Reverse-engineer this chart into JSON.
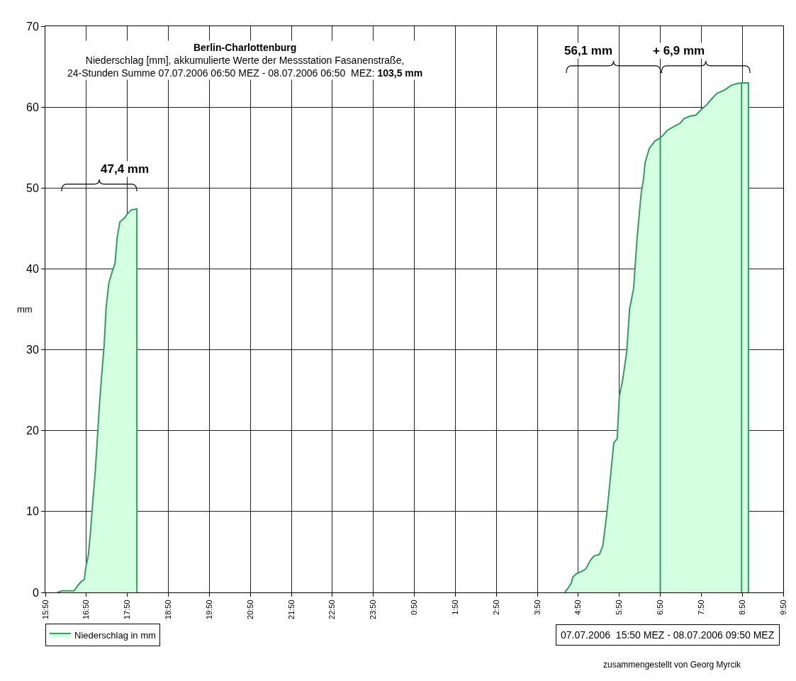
{
  "chart_data": {
    "type": "area",
    "title": "Berlin-Charlottenburg",
    "subtitle": "Niederschlag [mm], akkumulierte Werte der Messstation Fasanenstraße,\n24-Stunden Summe 07.07.2006 06:50 MEZ - 08.07.2006 06:50  MEZ: 103,5 mm",
    "ylabel": "mm",
    "annotations": [
      "47,4 mm",
      "56,1 mm",
      "+ 6,9 mm",
      "07.07.2006  15:50 MEZ - 08.07.2006 09:50 MEZ",
      "zusammengestellt von Georg Myrcik"
    ],
    "series": [
      {
        "name": "Niederschlag in mm",
        "color": "#2f9e5f",
        "x": [
          "2006-07-07T16:08",
          "2006-07-07T16:14",
          "2006-07-07T16:32",
          "2006-07-07T16:38",
          "2006-07-07T16:43",
          "2006-07-07T16:47",
          "2006-07-07T16:49",
          "2006-07-07T16:53",
          "2006-07-07T16:56",
          "2006-07-07T16:59",
          "2006-07-07T17:03",
          "2006-07-07T17:06",
          "2006-07-07T17:09",
          "2006-07-07T17:12",
          "2006-07-07T17:16",
          "2006-07-07T17:19",
          "2006-07-07T17:23",
          "2006-07-07T17:28",
          "2006-07-07T17:32",
          "2006-07-07T17:35",
          "2006-07-07T17:39",
          "2006-07-07T17:46",
          "2006-07-07T17:50",
          "2006-07-07T17:56",
          "2006-07-07T18:04",
          "2006-07-07T18:04",
          "2006-07-07T23:00",
          "2006-07-08T04:30",
          "2006-07-08T04:34",
          "2006-07-08T04:40",
          "2006-07-08T04:42",
          "2006-07-08T04:47",
          "2006-07-08T04:55",
          "2006-07-08T05:01",
          "2006-07-08T05:08",
          "2006-07-08T05:13",
          "2006-07-08T05:21",
          "2006-07-08T05:26",
          "2006-07-08T05:32",
          "2006-07-08T05:37",
          "2006-07-08T05:42",
          "2006-07-08T05:47",
          "2006-07-08T05:50",
          "2006-07-08T05:55",
          "2006-07-08T06:01",
          "2006-07-08T06:05",
          "2006-07-08T06:11",
          "2006-07-08T06:16",
          "2006-07-08T06:22",
          "2006-07-08T06:25",
          "2006-07-08T06:28",
          "2006-07-08T06:34",
          "2006-07-08T06:42",
          "2006-07-08T06:50",
          "2006-07-08T06:50",
          "2006-07-08T06:50",
          "2006-07-08T06:54",
          "2006-07-08T07:00",
          "2006-07-08T07:08",
          "2006-07-08T07:19",
          "2006-07-08T07:25",
          "2006-07-08T07:34",
          "2006-07-08T07:42",
          "2006-07-08T07:50",
          "2006-07-08T07:58",
          "2006-07-08T08:05",
          "2006-07-08T08:13",
          "2006-07-08T08:24",
          "2006-07-08T08:34",
          "2006-07-08T08:42",
          "2006-07-08T08:49",
          "2006-07-08T08:49",
          "2006-07-08T08:49",
          "2006-07-08T08:50",
          "2006-07-08T08:59",
          "2006-07-08T08:59"
        ],
        "values": [
          0,
          0.2,
          0.2,
          0.9,
          1.4,
          1.6,
          3,
          4.7,
          7.4,
          10.8,
          14.9,
          18.9,
          23,
          26.4,
          30.5,
          35.3,
          38.3,
          39.7,
          40.7,
          43.8,
          45.8,
          46.3,
          46.8,
          47.3,
          47.4,
          0,
          null,
          0,
          0.4,
          1.2,
          1.9,
          2.3,
          2.6,
          2.9,
          4,
          4.5,
          4.7,
          5.8,
          9.9,
          14.2,
          18.5,
          19,
          24.2,
          26.3,
          29.8,
          35,
          37.6,
          43.7,
          49.3,
          50.8,
          53.2,
          54.9,
          55.8,
          56.2,
          0,
          56.2,
          56.5,
          57.1,
          57.5,
          58,
          58.6,
          58.9,
          59,
          59.7,
          60.3,
          61,
          61.7,
          62.1,
          62.7,
          62.9,
          63,
          0,
          63,
          63,
          63,
          0
        ]
      }
    ],
    "xlim": [
      "2006-07-07T15:50",
      "2006-07-08T09:50"
    ],
    "xticks": [
      {
        "value": "2006-07-07T15:50",
        "label": "15:50"
      },
      {
        "value": "2006-07-07T16:50",
        "label": "16:50"
      },
      {
        "value": "2006-07-07T17:50",
        "label": "17:50"
      },
      {
        "value": "2006-07-07T18:50",
        "label": "18:50"
      },
      {
        "value": "2006-07-07T19:50",
        "label": "19:50"
      },
      {
        "value": "2006-07-07T20:50",
        "label": "20:50"
      },
      {
        "value": "2006-07-07T21:50",
        "label": "21:50"
      },
      {
        "value": "2006-07-07T22:50",
        "label": "22:50"
      },
      {
        "value": "2006-07-07T23:50",
        "label": "23:50"
      },
      {
        "value": "2006-07-08T00:50",
        "label": "0:50"
      },
      {
        "value": "2006-07-08T01:50",
        "label": "1:50"
      },
      {
        "value": "2006-07-08T02:50",
        "label": "2:50"
      },
      {
        "value": "2006-07-08T03:50",
        "label": "3:50"
      },
      {
        "value": "2006-07-08T04:50",
        "label": "4:50"
      },
      {
        "value": "2006-07-08T05:50",
        "label": "5:50"
      },
      {
        "value": "2006-07-08T06:50",
        "label": "6:50"
      },
      {
        "value": "2006-07-08T07:50",
        "label": "7:50"
      },
      {
        "value": "2006-07-08T08:50",
        "label": "8:50"
      },
      {
        "value": "2006-07-08T09:50",
        "label": "9:50"
      }
    ],
    "ylim": [
      0,
      70
    ],
    "yticks": [
      0,
      10,
      20,
      30,
      40,
      50,
      60,
      70
    ],
    "grid": true,
    "legend": "bottom left",
    "marker": "none",
    "line_style": "solid"
  }
}
